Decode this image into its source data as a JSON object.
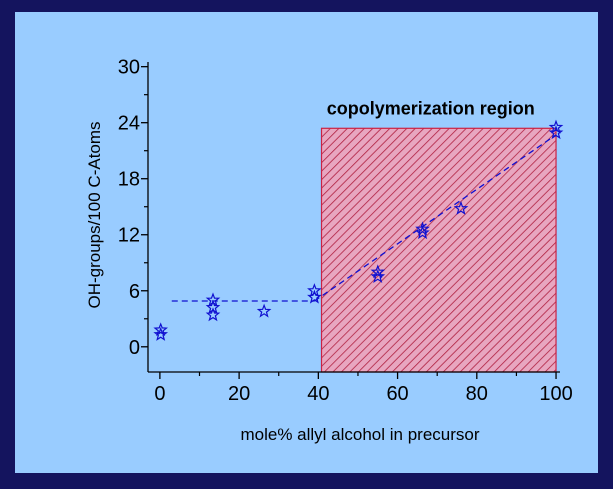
{
  "chart_data": {
    "type": "scatter",
    "xlabel": "mole% allyl alcohol in precursor",
    "ylabel": "OH-groups/100 C-Atoms",
    "xlim": [
      -3,
      101
    ],
    "ylim": [
      -2.7,
      30.5
    ],
    "xticks": [
      0,
      20,
      40,
      60,
      80,
      100
    ],
    "yticks": [
      0,
      6,
      12,
      18,
      24,
      30
    ],
    "xminorticks": [
      10,
      30,
      50,
      70,
      90
    ],
    "yminorticks": [
      3,
      9,
      15,
      21,
      27
    ],
    "series": [
      {
        "color": "#1010d0",
        "marker": "star",
        "x": [
          0.2,
          0.2,
          13.4,
          13.4,
          13.4,
          26.3,
          39,
          39,
          55,
          55,
          66.3,
          66.3,
          76,
          100,
          100
        ],
        "values": [
          1.8,
          1.3,
          5.0,
          4.2,
          3.4,
          3.8,
          6.0,
          5.3,
          8.0,
          7.5,
          12.6,
          12.2,
          14.8,
          23.5,
          22.9
        ]
      }
    ],
    "fit_lines": [
      {
        "color": "#1010d0",
        "dashed": true,
        "x": [
          3,
          39
        ],
        "values": [
          4.9,
          4.9
        ]
      },
      {
        "color": "#1010d0",
        "dashed": true,
        "x": [
          39,
          100
        ],
        "values": [
          4.9,
          22.7
        ]
      }
    ],
    "region": {
      "label": "copolymerization region",
      "x": [
        40.8,
        100
      ],
      "top": 23.4,
      "color": "#cc2244"
    }
  }
}
